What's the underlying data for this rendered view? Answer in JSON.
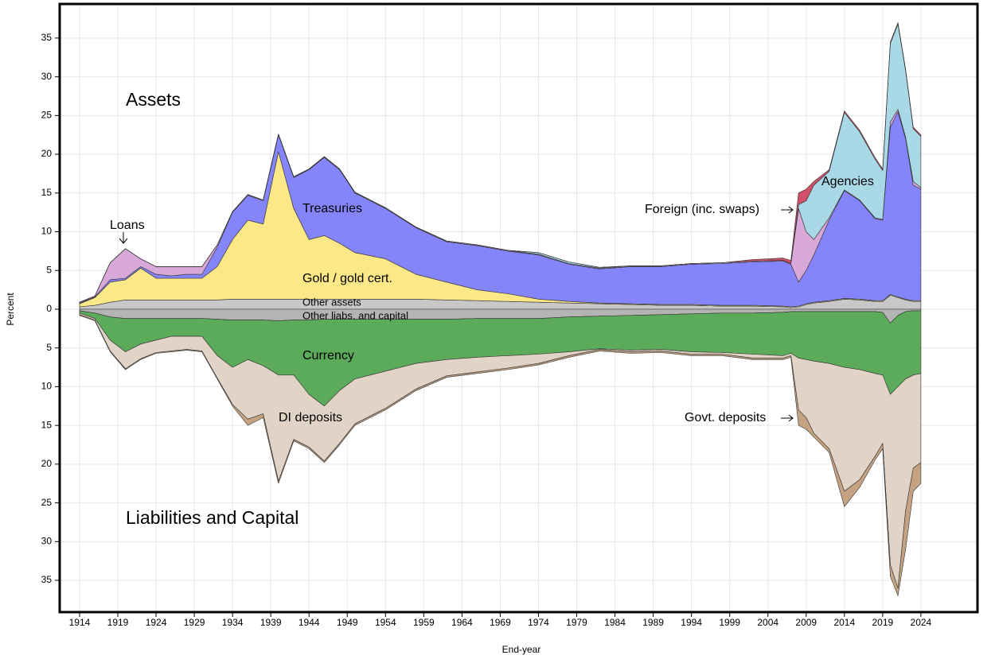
{
  "chart_data": {
    "type": "area",
    "x_label": "End-year",
    "y_label": "Percent",
    "annotations": [
      "Assets",
      "Liabilities and Capital"
    ],
    "x": [
      1914,
      1916,
      1918,
      1920,
      1922,
      1924,
      1926,
      1928,
      1930,
      1932,
      1934,
      1936,
      1938,
      1940,
      1942,
      1944,
      1946,
      1948,
      1950,
      1954,
      1958,
      1962,
      1966,
      1970,
      1974,
      1978,
      1982,
      1986,
      1990,
      1994,
      1998,
      2002,
      2006,
      2007,
      2008,
      2009,
      2010,
      2012,
      2014,
      2016,
      2018,
      2019,
      2020,
      2021,
      2022,
      2023,
      2024
    ],
    "series": [
      {
        "name": "Other assets",
        "color": "#c8c8c8",
        "values": [
          0.3,
          0.5,
          0.9,
          1.2,
          1.2,
          1.2,
          1.2,
          1.2,
          1.2,
          1.2,
          1.3,
          1.3,
          1.3,
          1.3,
          1.3,
          1.3,
          1.3,
          1.3,
          1.3,
          1.3,
          1.3,
          1.2,
          1.1,
          1.0,
          0.9,
          0.8,
          0.7,
          0.6,
          0.5,
          0.5,
          0.4,
          0.4,
          0.3,
          0.2,
          0.3,
          0.6,
          0.8,
          1.0,
          1.3,
          1.2,
          1.0,
          1.0,
          1.8,
          1.5,
          1.2,
          1.0,
          1.0
        ]
      },
      {
        "name": "Gold / gold cert.",
        "color": "#fde887",
        "values": [
          0.4,
          1.0,
          2.6,
          2.6,
          4.1,
          2.8,
          2.8,
          2.8,
          2.8,
          4.3,
          7.7,
          10.2,
          9.7,
          19.0,
          11.7,
          7.7,
          8.2,
          7.2,
          6.0,
          5.2,
          3.2,
          2.3,
          1.4,
          1.0,
          0.4,
          0.2,
          0.1,
          0.1,
          0.1,
          0.1,
          0.1,
          0.1,
          0.1,
          0.1,
          0.1,
          0.1,
          0.1,
          0.1,
          0.1,
          0.1,
          0.1,
          0.1,
          0.1,
          0.1,
          0.1,
          0.1,
          0.1
        ]
      },
      {
        "name": "Treasuries",
        "color": "#8585fb",
        "values": [
          0.1,
          0.1,
          0.3,
          0.2,
          0.2,
          0.5,
          0.3,
          0.5,
          0.5,
          2.5,
          3.5,
          3.2,
          3.0,
          2.2,
          4.0,
          9.0,
          10.1,
          9.5,
          7.7,
          6.5,
          6.0,
          5.2,
          5.7,
          5.5,
          5.7,
          4.8,
          4.4,
          4.8,
          4.9,
          5.2,
          5.4,
          5.6,
          5.8,
          5.5,
          3.1,
          4.3,
          6.1,
          10.4,
          13.9,
          12.7,
          10.6,
          10.4,
          21.6,
          23.9,
          20.7,
          14.9,
          14.4
        ]
      },
      {
        "name": "Loans",
        "color": "#d8a8d8",
        "values": [
          0.1,
          0.1,
          2.2,
          3.8,
          1.0,
          1.0,
          1.2,
          1.0,
          1.0,
          0.3,
          0.1,
          0.1,
          0.1,
          0.1,
          0.1,
          0.1,
          0.1,
          0.1,
          0.1,
          0.1,
          0.1,
          0.1,
          0.1,
          0.1,
          0.1,
          0.1,
          0.1,
          0.1,
          0.1,
          0.1,
          0.1,
          0.1,
          0.1,
          0.1,
          9.5,
          5.0,
          2.0,
          0.3,
          0.1,
          0.1,
          0.1,
          0.1,
          0.7,
          0.3,
          0.2,
          0.5,
          0.2
        ]
      },
      {
        "name": "Agencies",
        "color": "#a9d8e6",
        "values": [
          0,
          0,
          0,
          0,
          0,
          0,
          0,
          0,
          0,
          0,
          0,
          0,
          0,
          0,
          0,
          0,
          0,
          0,
          0,
          0,
          0,
          0,
          0,
          0,
          0.2,
          0.2,
          0.1,
          0,
          0,
          0,
          0,
          0,
          0,
          0,
          0.5,
          4.0,
          7.0,
          6.0,
          10.0,
          8.8,
          7.6,
          6.3,
          10.1,
          11.0,
          8.6,
          6.8,
          6.6
        ]
      },
      {
        "name": "Foreign (inc. swaps)",
        "color": "#d0506a",
        "values": [
          0,
          0,
          0,
          0,
          0,
          0,
          0,
          0,
          0,
          0,
          0,
          0,
          0,
          0,
          0,
          0,
          0,
          0,
          0,
          0,
          0,
          0,
          0,
          0,
          0,
          0,
          0,
          0,
          0,
          0,
          0,
          0.2,
          0.3,
          0.4,
          1.5,
          1.5,
          0.5,
          0.2,
          0.2,
          0.2,
          0.2,
          0.2,
          0.2,
          0.2,
          0.2,
          0.2,
          0.2
        ]
      },
      {
        "name": "Other liabs. and capital",
        "color": "#b4b4b4",
        "values": [
          -0.2,
          -0.5,
          -1.0,
          -1.2,
          -1.2,
          -1.2,
          -1.2,
          -1.2,
          -1.2,
          -1.3,
          -1.4,
          -1.4,
          -1.4,
          -1.5,
          -1.4,
          -1.4,
          -1.3,
          -1.3,
          -1.3,
          -1.3,
          -1.3,
          -1.3,
          -1.2,
          -1.2,
          -1.2,
          -1.0,
          -0.9,
          -0.8,
          -0.7,
          -0.6,
          -0.5,
          -0.5,
          -0.4,
          -0.3,
          -0.3,
          -0.3,
          -0.3,
          -0.3,
          -0.3,
          -0.3,
          -0.3,
          -0.4,
          -1.8,
          -0.8,
          -0.3,
          -0.2,
          -0.2
        ]
      },
      {
        "name": "Currency",
        "color": "#5bab5b",
        "values": [
          -0.3,
          -0.7,
          -3.0,
          -4.3,
          -3.3,
          -2.8,
          -2.3,
          -2.3,
          -2.3,
          -4.7,
          -6.1,
          -5.1,
          -5.9,
          -7.0,
          -7.1,
          -9.6,
          -11.2,
          -9.2,
          -7.7,
          -6.7,
          -5.7,
          -5.2,
          -5.0,
          -4.8,
          -4.6,
          -4.5,
          -4.2,
          -4.5,
          -4.5,
          -4.9,
          -5.1,
          -5.3,
          -5.6,
          -5.4,
          -6.0,
          -6.2,
          -6.4,
          -6.7,
          -7.2,
          -7.5,
          -8.0,
          -8.1,
          -9.2,
          -9.2,
          -8.7,
          -8.3,
          -8.1
        ]
      },
      {
        "name": "DI deposits",
        "color": "#e1d4c6",
        "values": [
          -0.2,
          -0.2,
          -1.4,
          -2.2,
          -1.9,
          -1.6,
          -1.9,
          -1.7,
          -1.9,
          -2.9,
          -4.8,
          -7.7,
          -6.2,
          -13.7,
          -8.3,
          -6.8,
          -7.1,
          -6.8,
          -5.8,
          -4.8,
          -3.3,
          -2.1,
          -1.9,
          -1.6,
          -1.2,
          -0.5,
          -0.1,
          -0.2,
          -0.2,
          -0.3,
          -0.2,
          -0.5,
          -0.3,
          -0.3,
          -6.7,
          -7.5,
          -9.3,
          -11.0,
          -16.0,
          -14.2,
          -10.7,
          -8.8,
          -22.0,
          -26.0,
          -17.0,
          -12.0,
          -11.5
        ]
      },
      {
        "name": "Govt. deposits",
        "color": "#c4a282",
        "values": [
          -0.1,
          -0.1,
          -0.1,
          -0.1,
          -0.1,
          -0.1,
          -0.1,
          -0.1,
          -0.1,
          -0.1,
          -0.2,
          -0.8,
          -0.5,
          -0.3,
          -0.2,
          -0.2,
          -0.2,
          -0.2,
          -0.2,
          -0.2,
          -0.2,
          -0.2,
          -0.2,
          -0.2,
          -0.2,
          -0.2,
          -0.2,
          -0.2,
          -0.2,
          -0.2,
          -0.2,
          -0.2,
          -0.2,
          -0.2,
          -2.0,
          -1.5,
          -0.5,
          -0.5,
          -2.0,
          -1.0,
          -0.5,
          -0.7,
          -1.5,
          -1.0,
          -5.0,
          -3.0,
          -2.7
        ]
      }
    ],
    "xlim": [
      1911.4,
      2031.4
    ],
    "xticks": [
      1914,
      1919,
      1924,
      1929,
      1934,
      1939,
      1944,
      1949,
      1954,
      1959,
      1964,
      1969,
      1974,
      1979,
      1984,
      1989,
      1994,
      1999,
      2004,
      2009,
      2014,
      2019,
      2024
    ],
    "ylim": [
      -39.1,
      39.4
    ],
    "yticks": [
      {
        "value": -35,
        "label": "35"
      },
      {
        "value": -30,
        "label": "30"
      },
      {
        "value": -25,
        "label": "25"
      },
      {
        "value": -20,
        "label": "20"
      },
      {
        "value": -15,
        "label": "15"
      },
      {
        "value": -10,
        "label": "10"
      },
      {
        "value": -5,
        "label": "5"
      },
      0,
      5,
      10,
      15,
      20,
      25,
      30,
      35
    ],
    "grid": true
  }
}
